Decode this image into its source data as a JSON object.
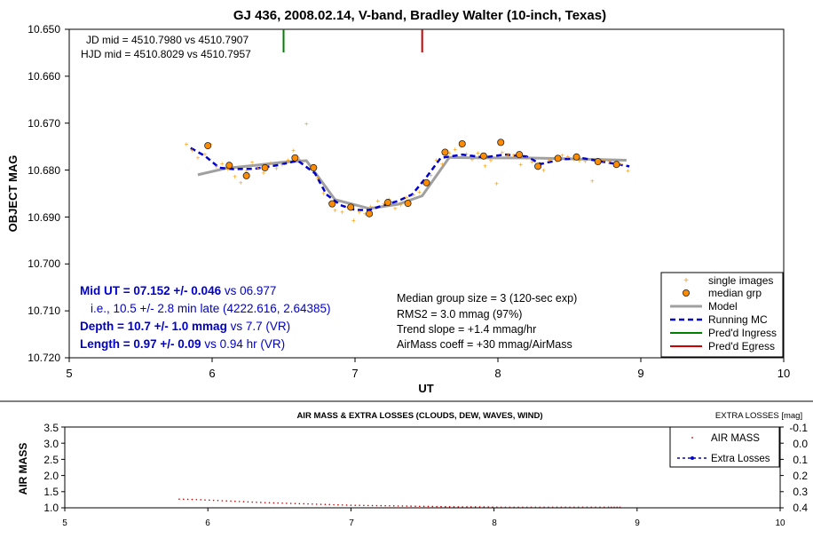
{
  "chart_data": [
    {
      "type": "scatter",
      "title": "GJ 436, 2008.02.14, V-band, Bradley Walter (10-inch, Texas)",
      "xlabel": "UT",
      "ylabel": "OBJECT MAG",
      "xlim": [
        5,
        10
      ],
      "ylim": [
        10.65,
        10.72
      ],
      "y_inverted": true,
      "grid": false,
      "legend_position": "bottom-right",
      "x_ticks": [
        "5",
        "6",
        "7",
        "8",
        "9",
        "10"
      ],
      "y_ticks": [
        "10.650",
        "10.660",
        "10.670",
        "10.680",
        "10.690",
        "10.700",
        "10.710",
        "10.720"
      ],
      "jd_note": "JD mid = 4510.7980 vs 4510.7907",
      "hjd_note": "HJD mid = 4510.8029 vs 4510.7957",
      "stats_left": [
        {
          "strong": "Mid UT = 07.152 +/- 0.046",
          "rest": " vs 06.977"
        },
        {
          "strong": "",
          "rest": "i.e., 10.5 +/- 2.8 min late (4222.616, 2.64385)"
        },
        {
          "strong": "Depth = 10.7 +/- 1.0 mmag",
          "rest": " vs 7.7 (VR)"
        },
        {
          "strong": "Length = 0.97 +/- 0.09",
          "rest": " vs 0.94 hr (VR)"
        }
      ],
      "stats_right": [
        "Median group size = 3 (120-sec exp)",
        "RMS2 = 3.0 mmag (97%)",
        "Trend slope = +1.4 mmag/hr",
        "AirMass coeff = +30 mmag/AirMass"
      ],
      "legend": [
        "single images",
        "median grp",
        "Model",
        "Running MC",
        "Pred'd Ingress",
        "Pred'd Egress"
      ],
      "colors": {
        "single": "#ff9900",
        "median": "#ff8c00",
        "model": "#a0a0a0",
        "running": "#0000cc",
        "ingress": "#008000",
        "egress": "#cc0000",
        "stats": "#0000cc"
      },
      "pred_ingress_ut": 6.5,
      "pred_egress_ut": 7.47,
      "single_images": [
        [
          5.82,
          10.6744
        ],
        [
          5.86,
          10.6757
        ],
        [
          5.9,
          10.6773
        ],
        [
          5.95,
          10.6766
        ],
        [
          5.99,
          10.6745
        ],
        [
          6.03,
          10.6792
        ],
        [
          6.07,
          10.6786
        ],
        [
          6.11,
          10.6797
        ],
        [
          6.16,
          10.6813
        ],
        [
          6.2,
          10.6826
        ],
        [
          6.24,
          10.6802
        ],
        [
          6.28,
          10.6783
        ],
        [
          6.32,
          10.6795
        ],
        [
          6.36,
          10.6806
        ],
        [
          6.41,
          10.6784
        ],
        [
          6.45,
          10.6796
        ],
        [
          6.49,
          10.6788
        ],
        [
          6.53,
          10.6778
        ],
        [
          6.57,
          10.6757
        ],
        [
          6.61,
          10.6776
        ],
        [
          6.66,
          10.6701
        ],
        [
          6.7,
          10.6795
        ],
        [
          6.74,
          10.6817
        ],
        [
          6.78,
          10.6849
        ],
        [
          6.82,
          10.687
        ],
        [
          6.86,
          10.6885
        ],
        [
          6.91,
          10.6889
        ],
        [
          6.95,
          10.6879
        ],
        [
          6.99,
          10.6907
        ],
        [
          7.03,
          10.6889
        ],
        [
          7.07,
          10.6893
        ],
        [
          7.11,
          10.6877
        ],
        [
          7.16,
          10.6865
        ],
        [
          7.2,
          10.6872
        ],
        [
          7.24,
          10.6862
        ],
        [
          7.28,
          10.6881
        ],
        [
          7.32,
          10.6874
        ],
        [
          7.36,
          10.6858
        ],
        [
          7.41,
          10.6852
        ],
        [
          7.45,
          10.6846
        ],
        [
          7.49,
          10.6825
        ],
        [
          7.53,
          10.681
        ],
        [
          7.57,
          10.6778
        ],
        [
          7.61,
          10.6787
        ],
        [
          7.66,
          10.6763
        ],
        [
          7.7,
          10.6755
        ],
        [
          7.74,
          10.6749
        ],
        [
          7.78,
          10.6765
        ],
        [
          7.82,
          10.6777
        ],
        [
          7.86,
          10.6763
        ],
        [
          7.91,
          10.679
        ],
        [
          7.95,
          10.6779
        ],
        [
          7.99,
          10.6828
        ],
        [
          8.03,
          10.6762
        ],
        [
          8.07,
          10.6767
        ],
        [
          8.11,
          10.6768
        ],
        [
          8.16,
          10.6788
        ],
        [
          8.2,
          10.6773
        ],
        [
          8.24,
          10.6782
        ],
        [
          8.28,
          10.6791
        ],
        [
          8.32,
          10.68
        ],
        [
          8.36,
          10.6778
        ],
        [
          8.41,
          10.6779
        ],
        [
          8.45,
          10.6768
        ],
        [
          8.49,
          10.6771
        ],
        [
          8.53,
          10.6776
        ],
        [
          8.57,
          10.6779
        ],
        [
          8.61,
          10.6781
        ],
        [
          8.66,
          10.6823
        ],
        [
          8.7,
          10.6785
        ],
        [
          8.74,
          10.6779
        ],
        [
          8.78,
          10.6781
        ],
        [
          8.82,
          10.6792
        ],
        [
          8.86,
          10.6787
        ],
        [
          8.91,
          10.6801
        ]
      ],
      "median_groups": [
        [
          5.97,
          10.6748
        ],
        [
          6.12,
          10.679
        ],
        [
          6.24,
          10.6812
        ],
        [
          6.37,
          10.6795
        ],
        [
          6.58,
          10.6774
        ],
        [
          6.71,
          10.6795
        ],
        [
          6.84,
          10.6872
        ],
        [
          6.97,
          10.6879
        ],
        [
          7.1,
          10.6893
        ],
        [
          7.23,
          10.6869
        ],
        [
          7.37,
          10.6871
        ],
        [
          7.5,
          10.6827
        ],
        [
          7.63,
          10.6762
        ],
        [
          7.75,
          10.6744
        ],
        [
          7.9,
          10.677
        ],
        [
          8.02,
          10.6741
        ],
        [
          8.15,
          10.6767
        ],
        [
          8.28,
          10.6792
        ],
        [
          8.42,
          10.6775
        ],
        [
          8.55,
          10.6772
        ],
        [
          8.7,
          10.6782
        ],
        [
          8.83,
          10.6788
        ]
      ],
      "model": [
        [
          5.9,
          10.681
        ],
        [
          6.1,
          10.6796
        ],
        [
          6.3,
          10.679
        ],
        [
          6.5,
          10.6783
        ],
        [
          6.66,
          10.678
        ],
        [
          6.86,
          10.6863
        ],
        [
          7.1,
          10.6882
        ],
        [
          7.3,
          10.6873
        ],
        [
          7.47,
          10.6855
        ],
        [
          7.66,
          10.6773
        ],
        [
          7.9,
          10.6774
        ],
        [
          8.2,
          10.6774
        ],
        [
          8.5,
          10.6776
        ],
        [
          8.9,
          10.6779
        ]
      ],
      "running_mc": [
        [
          5.85,
          10.6753
        ],
        [
          5.95,
          10.677
        ],
        [
          6.05,
          10.6795
        ],
        [
          6.15,
          10.6798
        ],
        [
          6.3,
          10.6797
        ],
        [
          6.45,
          10.679
        ],
        [
          6.6,
          10.678
        ],
        [
          6.72,
          10.6807
        ],
        [
          6.8,
          10.6852
        ],
        [
          6.9,
          10.6875
        ],
        [
          7.0,
          10.6885
        ],
        [
          7.1,
          10.6885
        ],
        [
          7.2,
          10.6875
        ],
        [
          7.3,
          10.6866
        ],
        [
          7.4,
          10.6852
        ],
        [
          7.5,
          10.6815
        ],
        [
          7.6,
          10.6774
        ],
        [
          7.75,
          10.6767
        ],
        [
          7.9,
          10.6773
        ],
        [
          8.05,
          10.6767
        ],
        [
          8.2,
          10.6771
        ],
        [
          8.3,
          10.6787
        ],
        [
          8.45,
          10.6777
        ],
        [
          8.6,
          10.6775
        ],
        [
          8.75,
          10.6783
        ],
        [
          8.92,
          10.6792
        ]
      ]
    },
    {
      "type": "scatter",
      "title": "AIR MASS & EXTRA LOSSES (CLOUDS, DEW, WAVES, WIND)",
      "ylabel": "AIR MASS",
      "y2label": "EXTRA LOSSES [mag]",
      "xlim": [
        5,
        10
      ],
      "ylim": [
        1.0,
        3.5
      ],
      "y2lim": [
        -0.1,
        0.4
      ],
      "x_ticks": [
        "5",
        "6",
        "7",
        "8",
        "9",
        "10"
      ],
      "y_ticks": [
        "3.5",
        "3.0",
        "2.5",
        "2.0",
        "1.5",
        "1.0"
      ],
      "y2_ticks": [
        "-0.1",
        "0.0",
        "0.1",
        "0.2",
        "0.3",
        "0.4"
      ],
      "legend_position": "top-right",
      "legend": [
        "AIR MASS",
        "Extra Losses"
      ],
      "colors": {
        "airmass": "#cc0000",
        "extra": "#0000cc"
      },
      "air_mass": [
        [
          5.8,
          1.27
        ],
        [
          5.95,
          1.25
        ],
        [
          6.1,
          1.22
        ],
        [
          6.25,
          1.19
        ],
        [
          6.4,
          1.16
        ],
        [
          6.55,
          1.14
        ],
        [
          6.7,
          1.12
        ],
        [
          6.85,
          1.1
        ],
        [
          7.0,
          1.08
        ],
        [
          7.15,
          1.07
        ],
        [
          7.3,
          1.06
        ],
        [
          7.45,
          1.05
        ],
        [
          7.6,
          1.04
        ],
        [
          7.75,
          1.03
        ],
        [
          7.9,
          1.03
        ],
        [
          8.05,
          1.02
        ],
        [
          8.2,
          1.02
        ],
        [
          8.35,
          1.02
        ],
        [
          8.5,
          1.02
        ],
        [
          8.65,
          1.02
        ],
        [
          8.8,
          1.02
        ],
        [
          8.9,
          1.02
        ]
      ]
    }
  ]
}
